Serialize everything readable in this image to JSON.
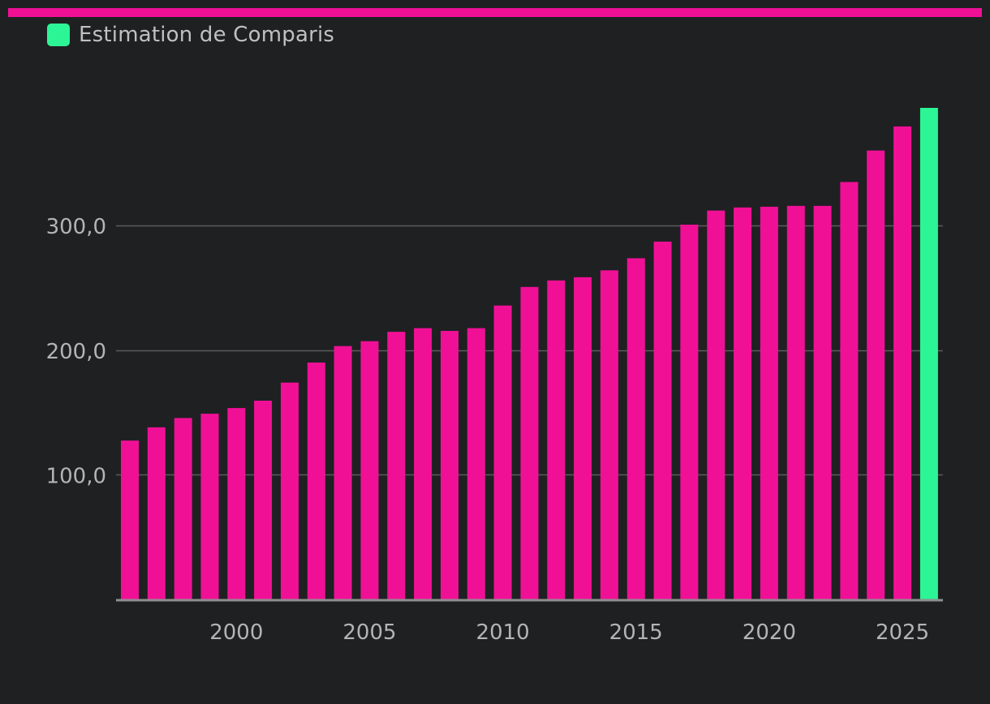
{
  "legend": {
    "label": "Estimation de Comparis",
    "color": "#2cf596"
  },
  "colors": {
    "primary": "#f01096",
    "estimate": "#2cf596",
    "background": "#1f2022",
    "grid": "#5a5b5d",
    "axis": "#8e8f91"
  },
  "chart_data": {
    "type": "bar",
    "x": [
      1996,
      1997,
      1998,
      1999,
      2000,
      2001,
      2002,
      2003,
      2004,
      2005,
      2006,
      2007,
      2008,
      2009,
      2010,
      2011,
      2012,
      2013,
      2014,
      2015,
      2016,
      2017,
      2018,
      2019,
      2020,
      2021,
      2022,
      2023,
      2024,
      2025,
      2026
    ],
    "values": [
      127.5,
      138.1,
      145.6,
      149.0,
      153.6,
      159.5,
      174.0,
      190.1,
      203.3,
      207.2,
      214.8,
      217.7,
      215.5,
      217.7,
      235.9,
      250.8,
      256.0,
      258.6,
      264.1,
      273.8,
      287.2,
      300.8,
      312.1,
      314.6,
      315.2,
      315.9,
      315.9,
      335.0,
      360.3,
      379.6,
      394.5
    ],
    "estimate_from": 2026,
    "x_ticks": [
      2000,
      2005,
      2010,
      2015,
      2020,
      2025
    ],
    "y_ticks": [
      100,
      200,
      300
    ],
    "y_tick_labels": [
      "100,0",
      "200,0",
      "300,0"
    ],
    "ylim": [
      0,
      400
    ],
    "grid": true,
    "legend_position": "top-left"
  }
}
